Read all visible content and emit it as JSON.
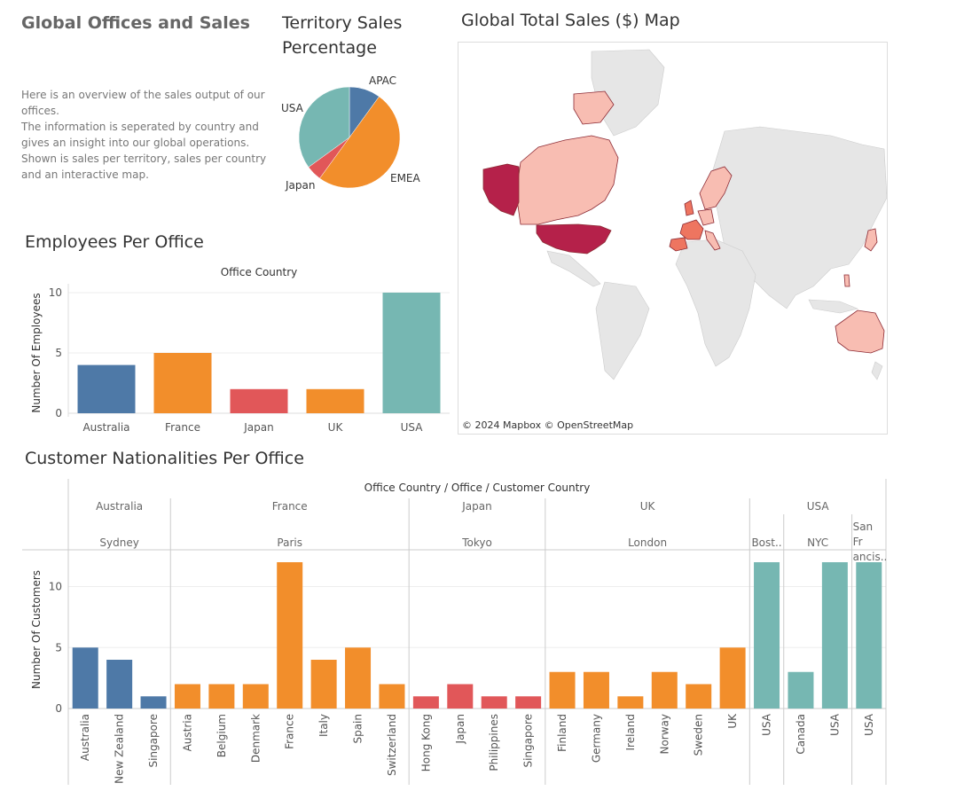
{
  "dashboard": {
    "title": "Global Offices and Sales",
    "intro_lines": [
      "Here is an overview of the sales output of our",
      "offices.",
      "The information is seperated by country and",
      "gives an insight into our global operations.",
      "Shown is sales per territory, sales per country",
      "and an interactive map."
    ]
  },
  "pie": {
    "title_line1": "Territory Sales",
    "title_line2": "Percentage"
  },
  "map": {
    "title": "Global Total Sales ($) Map",
    "attribution": "© 2024 Mapbox  © OpenStreetMap",
    "colors": {
      "ocean": "#ffffff",
      "land": "#e6e6e6",
      "low": "#f8bdb2",
      "mid": "#ee7560",
      "high": "#b5214a"
    }
  },
  "employees": {
    "title": "Employees Per Office"
  },
  "customers": {
    "title": "Customer Nationalities Per Office"
  },
  "chart_data": [
    {
      "type": "pie",
      "slices": [
        {
          "label": "APAC",
          "value": 10,
          "color": "#4e79a7"
        },
        {
          "label": "EMEA",
          "value": 50,
          "color": "#f28e2b"
        },
        {
          "label": "Japan",
          "value": 5,
          "color": "#e15759"
        },
        {
          "label": "USA",
          "value": 35,
          "color": "#76b7b2"
        }
      ]
    },
    {
      "type": "bar",
      "title": "Office Country",
      "ylabel": "Number Of Employees",
      "categories": [
        "Australia",
        "France",
        "Japan",
        "UK",
        "USA"
      ],
      "values": [
        4,
        5,
        2,
        2,
        10
      ],
      "colors": [
        "#4e79a7",
        "#f28e2b",
        "#e15759",
        "#f28e2b",
        "#76b7b2"
      ],
      "ylim": [
        0,
        11
      ],
      "yticks": [
        0,
        5,
        10
      ]
    },
    {
      "type": "bar",
      "title": "Office Country / Office / Customer Country",
      "ylabel": "Number Of Customers",
      "ylim": [
        0,
        12.5
      ],
      "yticks": [
        0,
        5,
        10
      ],
      "groups": [
        {
          "country": "Australia",
          "color": "#4e79a7",
          "offices": [
            {
              "office": "Sydney",
              "customers": [
                {
                  "country": "Australia",
                  "value": 5
                },
                {
                  "country": "New Zealand",
                  "value": 4
                },
                {
                  "country": "Singapore",
                  "value": 1
                }
              ]
            }
          ]
        },
        {
          "country": "France",
          "color": "#f28e2b",
          "offices": [
            {
              "office": "Paris",
              "customers": [
                {
                  "country": "Austria",
                  "value": 2
                },
                {
                  "country": "Belgium",
                  "value": 2
                },
                {
                  "country": "Denmark",
                  "value": 2
                },
                {
                  "country": "France",
                  "value": 12
                },
                {
                  "country": "Italy",
                  "value": 4
                },
                {
                  "country": "Spain",
                  "value": 5
                },
                {
                  "country": "Switzerland",
                  "value": 2
                }
              ]
            }
          ]
        },
        {
          "country": "Japan",
          "color": "#e15759",
          "offices": [
            {
              "office": "Tokyo",
              "customers": [
                {
                  "country": "Hong Kong",
                  "value": 1
                },
                {
                  "country": "Japan",
                  "value": 2
                },
                {
                  "country": "Philippines",
                  "value": 1
                },
                {
                  "country": "Singapore",
                  "value": 1
                }
              ]
            }
          ]
        },
        {
          "country": "UK",
          "color": "#f28e2b",
          "offices": [
            {
              "office": "London",
              "customers": [
                {
                  "country": "Finland",
                  "value": 3
                },
                {
                  "country": "Germany",
                  "value": 3
                },
                {
                  "country": "Ireland",
                  "value": 1
                },
                {
                  "country": "Norway",
                  "value": 3
                },
                {
                  "country": "Sweden",
                  "value": 2
                },
                {
                  "country": "UK",
                  "value": 5
                }
              ]
            }
          ]
        },
        {
          "country": "USA",
          "color": "#76b7b2",
          "offices": [
            {
              "office": "Bost..",
              "customers": [
                {
                  "country": "USA",
                  "value": 12
                }
              ]
            },
            {
              "office": "NYC",
              "customers": [
                {
                  "country": "Canada",
                  "value": 3
                },
                {
                  "country": "USA",
                  "value": 12
                }
              ]
            },
            {
              "office": "San Fr ancis..",
              "customers": [
                {
                  "country": "USA",
                  "value": 12
                }
              ]
            }
          ]
        }
      ]
    }
  ]
}
